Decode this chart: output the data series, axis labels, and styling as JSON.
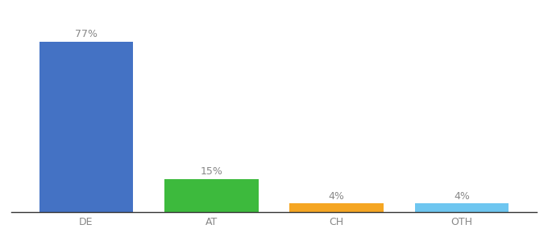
{
  "categories": [
    "DE",
    "AT",
    "CH",
    "OTH"
  ],
  "values": [
    77,
    15,
    4,
    4
  ],
  "bar_colors": [
    "#4472c4",
    "#3dba3d",
    "#f5a623",
    "#6ec6f0"
  ],
  "labels": [
    "77%",
    "15%",
    "4%",
    "4%"
  ],
  "ylim": [
    0,
    87
  ],
  "background_color": "#ffffff",
  "label_fontsize": 9,
  "tick_fontsize": 9,
  "bar_width": 0.75,
  "label_color": "#888888",
  "tick_color": "#888888",
  "spine_color": "#333333"
}
